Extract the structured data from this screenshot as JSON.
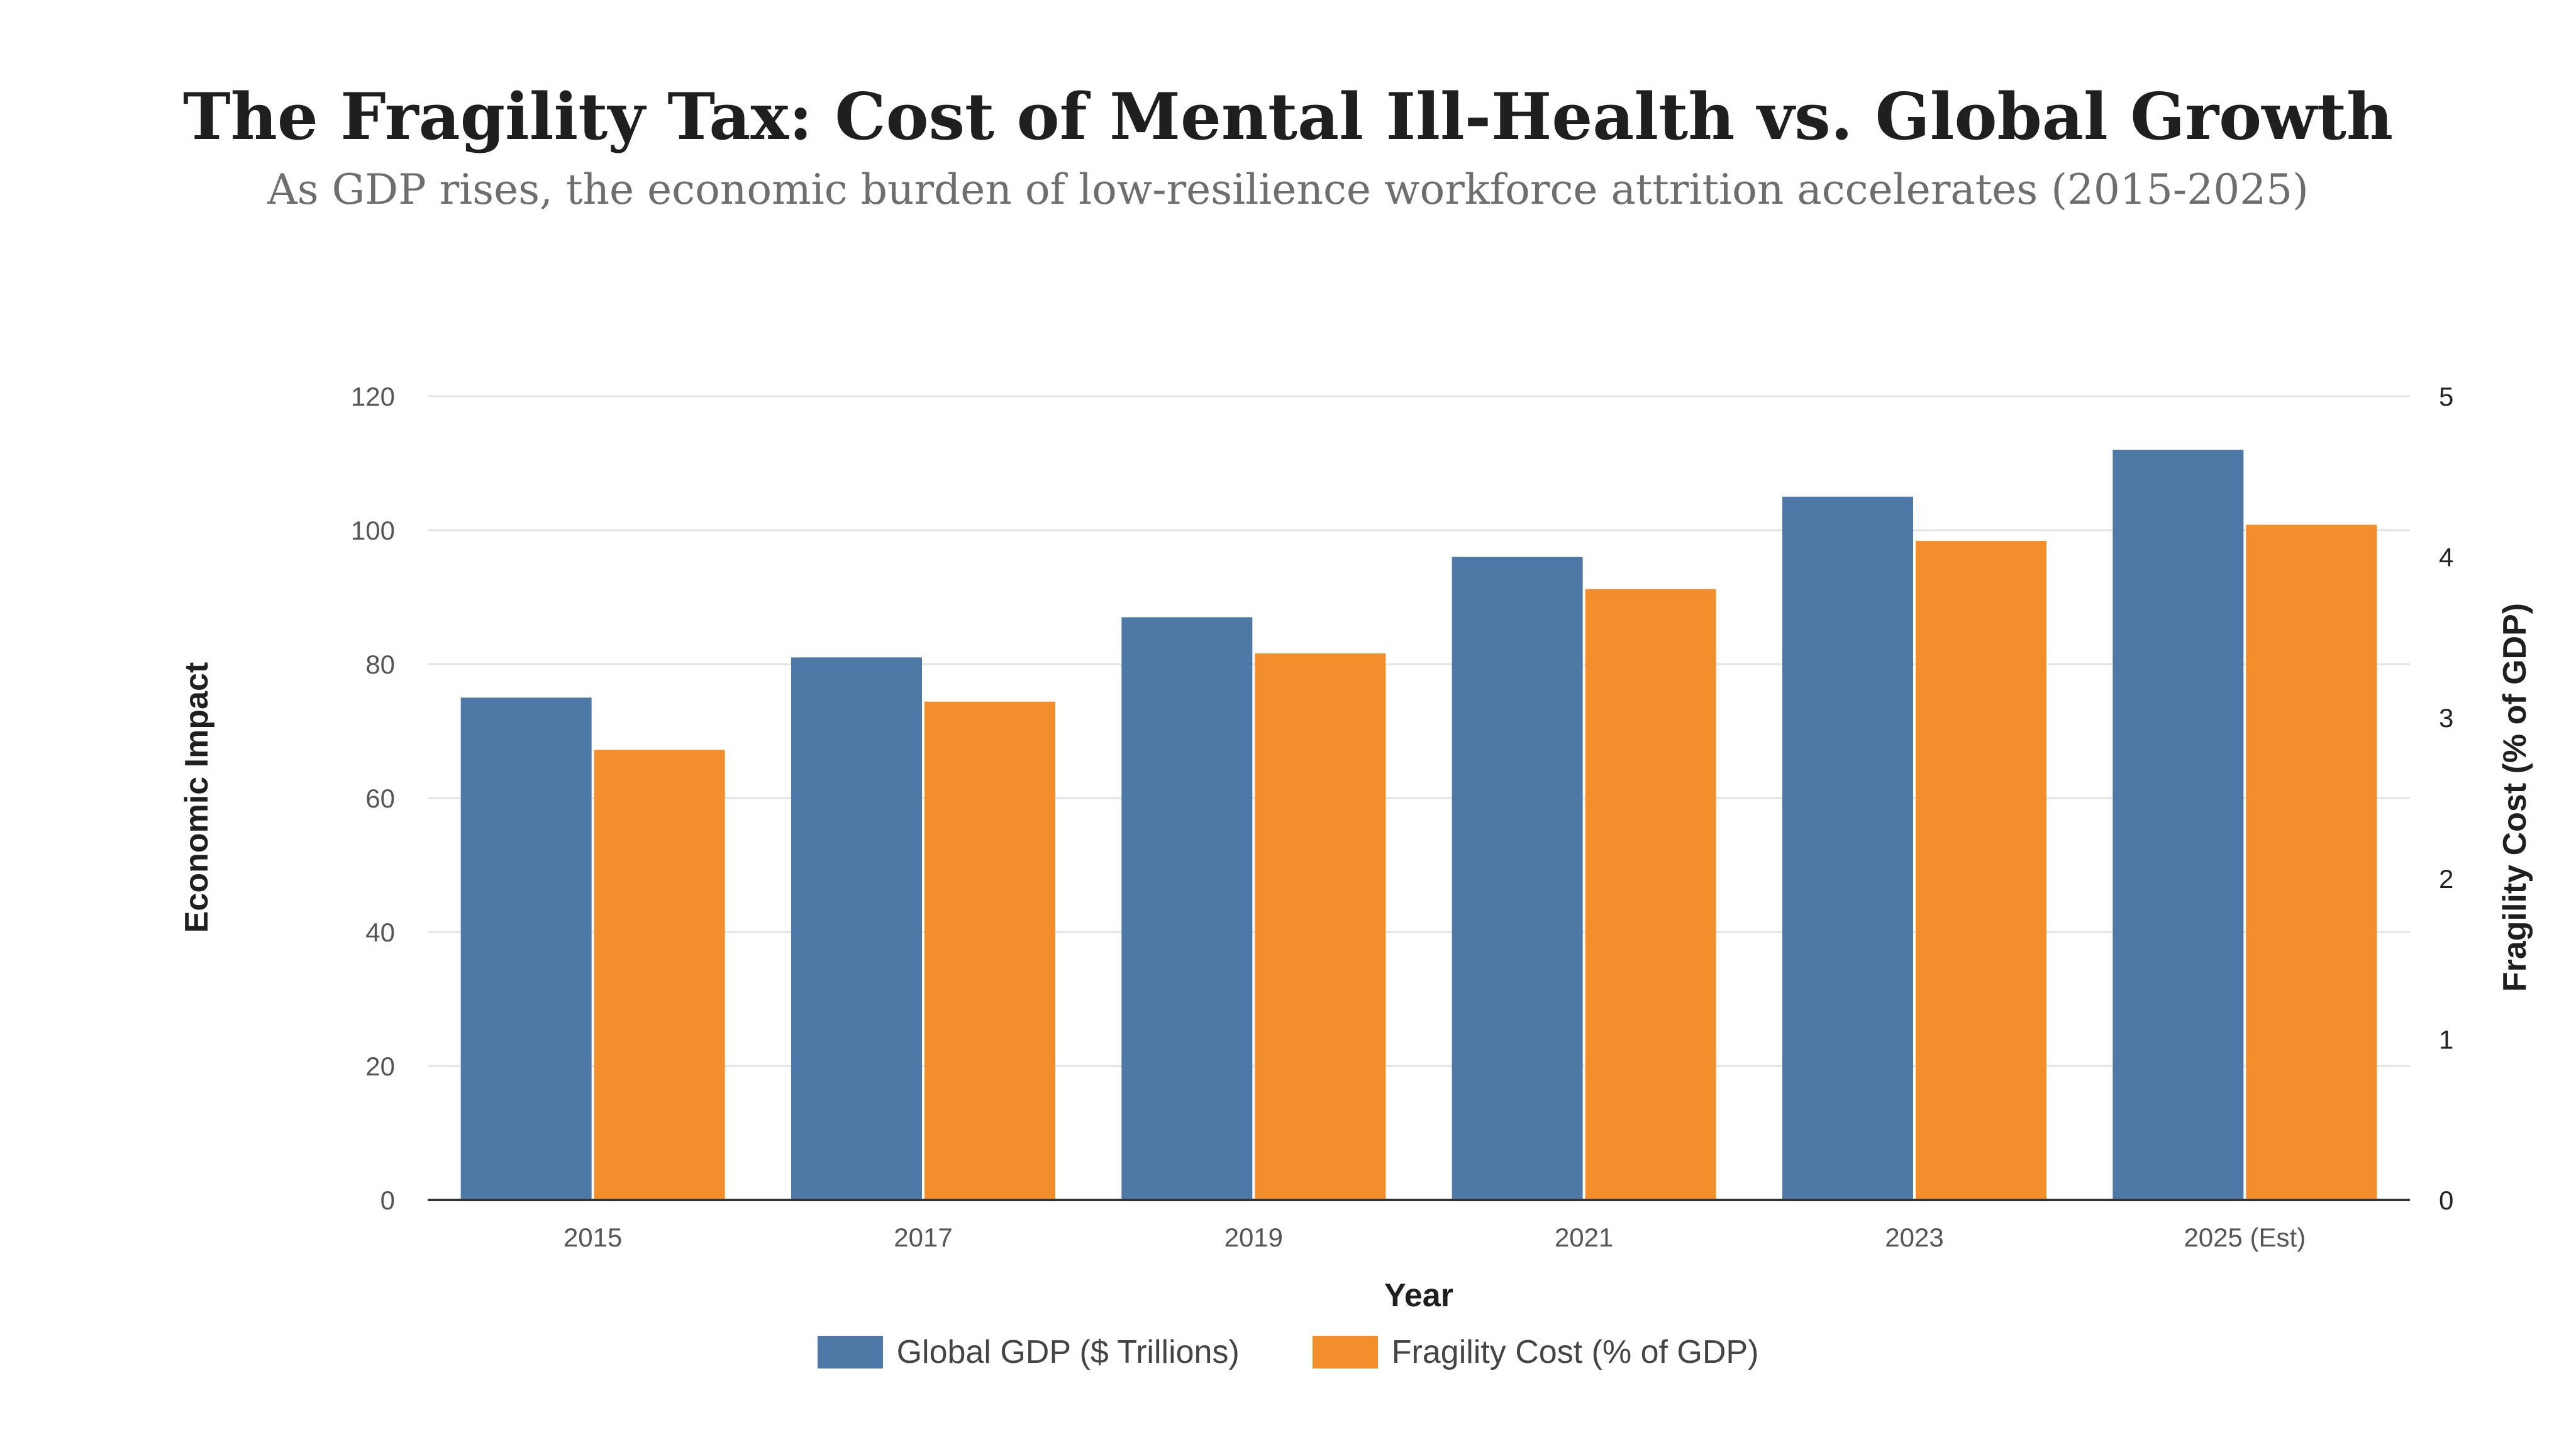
{
  "chart_data": {
    "type": "bar",
    "title": "The Fragility Tax: Cost of Mental Ill-Health vs. Global Growth",
    "subtitle": "As GDP rises, the economic burden of low-resilience workforce attrition accelerates (2015-2025)",
    "xlabel": "Year",
    "ylabel_left": "Economic Impact",
    "ylabel_right": "Fragility Cost (% of GDP)",
    "categories": [
      "2015",
      "2017",
      "2019",
      "2021",
      "2023",
      "2025 (Est)"
    ],
    "ylim_left": [
      0,
      120
    ],
    "yticks_left": [
      "0",
      "20",
      "40",
      "60",
      "80",
      "100",
      "120"
    ],
    "ylim_right": [
      0,
      5
    ],
    "yticks_right": [
      "0",
      "1",
      "2",
      "3",
      "4",
      "5"
    ],
    "grid": true,
    "legend_position": "bottom-center",
    "series": [
      {
        "name": "Global GDP ($ Trillions)",
        "axis": "left",
        "color": "#4e79a7",
        "values": [
          75,
          81,
          87,
          96,
          105,
          112
        ]
      },
      {
        "name": "Fragility Cost (% of GDP)",
        "axis": "right",
        "color": "#f28e2b",
        "values": [
          2.8,
          3.1,
          3.4,
          3.8,
          4.1,
          4.2
        ]
      }
    ]
  }
}
